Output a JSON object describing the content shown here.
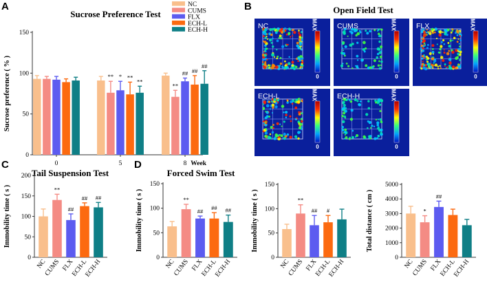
{
  "colors": {
    "NC": "#f9bf8c",
    "CUMS": "#f48b84",
    "FLX": "#5c5bf0",
    "ECH-L": "#fc6a10",
    "ECH-H": "#0f7f86",
    "error": "#7f7f7f",
    "axis": "#333333",
    "heatmap_bg": "#0a1f9c"
  },
  "panels": {
    "A": "A",
    "B": "B",
    "C": "C",
    "D": "D"
  },
  "open_field": {
    "title": "Open Field Test",
    "heatmaps": [
      {
        "label": "NC"
      },
      {
        "label": "CUMS"
      },
      {
        "label": "FLX"
      },
      {
        "label": "ECH-L"
      },
      {
        "label": "ECH-H"
      }
    ],
    "colorbar_max": "MAX",
    "colorbar_min": "0"
  },
  "chart_data": [
    {
      "id": "sucrose",
      "type": "bar",
      "title": "Sucrose Preference Test",
      "ylabel": "Sucrose preference ( % )",
      "xlabel": "Week",
      "ylim": [
        0,
        150
      ],
      "yticks": [
        "0",
        "50",
        "100",
        "150"
      ],
      "categories": [
        "0",
        "5",
        "8"
      ],
      "legend": [
        "NC",
        "CUMS",
        "FLX",
        "ECH-L",
        "ECH-H"
      ],
      "series": [
        {
          "name": "NC",
          "values": [
            93,
            91,
            97
          ],
          "errors": [
            4,
            5,
            3
          ],
          "sig": [
            "",
            "",
            ""
          ]
        },
        {
          "name": "CUMS",
          "values": [
            93,
            76,
            71
          ],
          "errors": [
            3,
            14,
            8
          ],
          "sig": [
            "",
            "**",
            "**"
          ]
        },
        {
          "name": "FLX",
          "values": [
            92,
            79,
            90
          ],
          "errors": [
            4,
            11,
            4
          ],
          "sig": [
            "",
            "*",
            "##"
          ]
        },
        {
          "name": "ECH-L",
          "values": [
            89,
            74,
            86
          ],
          "errors": [
            4,
            15,
            11
          ],
          "sig": [
            "",
            "**",
            "##"
          ]
        },
        {
          "name": "ECH-H",
          "values": [
            91,
            76,
            87
          ],
          "errors": [
            4,
            8,
            16
          ],
          "sig": [
            "",
            "**",
            "##"
          ]
        }
      ]
    },
    {
      "id": "tail",
      "type": "bar",
      "title": "Tail Suspension Test",
      "ylabel": "Immobility time ( s )",
      "ylim": [
        0,
        200
      ],
      "yticks": [
        "0",
        "50",
        "100",
        "150",
        "200"
      ],
      "categories": [
        "NC",
        "CUMS",
        "FLX",
        "ECH-L",
        "ECH-H"
      ],
      "values": [
        100,
        140,
        91,
        125,
        122
      ],
      "errors": [
        18,
        14,
        15,
        8,
        12
      ],
      "sig": [
        "",
        "**",
        "##",
        "##",
        "##"
      ]
    },
    {
      "id": "forced",
      "type": "bar",
      "title": "Forced Swim Test",
      "ylabel": "Immobility time ( s )",
      "ylim": [
        0,
        150
      ],
      "yticks": [
        "0",
        "50",
        "100",
        "150"
      ],
      "categories": [
        "NC",
        "CUMS",
        "FLX",
        "ECH-L",
        "ECH-H"
      ],
      "values": [
        63,
        98,
        79,
        79,
        72
      ],
      "errors": [
        10,
        10,
        5,
        12,
        14
      ],
      "sig": [
        "",
        "**",
        "##",
        "##",
        "##"
      ]
    },
    {
      "id": "openfield_imm",
      "type": "bar",
      "ylabel": "Immobility time ( s )",
      "ylim": [
        0,
        150
      ],
      "yticks": [
        "0",
        "50",
        "100",
        "150"
      ],
      "categories": [
        "NC",
        "CUMS",
        "FLX",
        "ECH-L",
        "ECH-H"
      ],
      "values": [
        58,
        90,
        66,
        72,
        78
      ],
      "errors": [
        10,
        18,
        20,
        14,
        21
      ],
      "sig": [
        "",
        "**",
        "##",
        "#",
        ""
      ]
    },
    {
      "id": "distance",
      "type": "bar",
      "ylabel": "Total distance ( cm )",
      "ylim": [
        0,
        5000
      ],
      "yticks": [
        "0",
        "1000",
        "2000",
        "3000",
        "4000",
        "5000"
      ],
      "categories": [
        "NC",
        "CUMS",
        "FLX",
        "ECH-L",
        "ECH-H"
      ],
      "values": [
        3000,
        2400,
        3450,
        2900,
        2200
      ],
      "errors": [
        500,
        450,
        400,
        400,
        400
      ],
      "sig": [
        "",
        "*",
        "##",
        "",
        ""
      ]
    }
  ]
}
